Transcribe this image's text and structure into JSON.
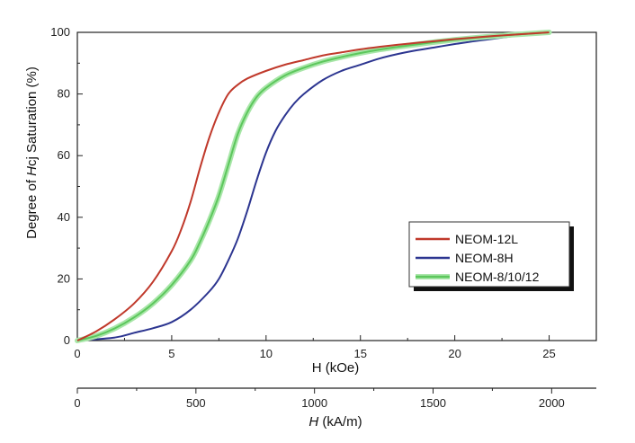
{
  "chart_data": {
    "type": "line",
    "ylabel_prefix": "Degree of ",
    "ylabel_italic": "H",
    "ylabel_suffix": "cj Saturation (%)",
    "xlabel": "H (kOe)",
    "x2label_italic": "H",
    "x2label_suffix": " (kA/m)",
    "xlim": [
      0,
      27.5
    ],
    "ylim": [
      0,
      100
    ],
    "x_ticks": [
      0,
      5,
      10,
      15,
      20,
      25
    ],
    "y_ticks": [
      0,
      20,
      40,
      60,
      80,
      100
    ],
    "x2_ticks": [
      0,
      500,
      1000,
      1500,
      2000
    ],
    "x2_per_x": 79.577,
    "grid": false,
    "legend_position": "center-right",
    "series": [
      {
        "name": "NEOM-12L",
        "color": "#c0392b",
        "x": [
          0,
          1,
          2,
          3,
          4,
          5,
          5.5,
          6,
          6.5,
          7,
          7.5,
          8,
          8.5,
          9,
          10,
          11,
          12,
          13,
          14,
          15,
          16,
          17,
          18,
          19,
          20,
          21,
          22,
          23,
          24,
          25
        ],
        "y": [
          0,
          3,
          7,
          12,
          19,
          29,
          36,
          45,
          56,
          66,
          74,
          80,
          83,
          85,
          87.5,
          89.5,
          91,
          92.5,
          93.5,
          94.5,
          95.3,
          96,
          96.6,
          97.2,
          97.8,
          98.3,
          98.8,
          99.2,
          99.6,
          100
        ]
      },
      {
        "name": "NEOM-8H",
        "color": "#2c3590",
        "x": [
          0,
          2,
          3,
          4,
          5,
          6,
          7,
          7.5,
          8,
          8.5,
          9,
          9.5,
          10,
          10.5,
          11,
          11.5,
          12,
          13,
          14,
          15,
          16,
          17,
          18,
          19,
          20,
          21,
          22,
          23,
          24,
          25
        ],
        "y": [
          0,
          1,
          2.5,
          4,
          6,
          10,
          16,
          20,
          26,
          33,
          42,
          52,
          61,
          68,
          73,
          77,
          80,
          84.5,
          87.5,
          89.5,
          91.5,
          93,
          94.2,
          95.2,
          96.2,
          97.1,
          97.9,
          98.7,
          99.4,
          100
        ]
      },
      {
        "name": "NEOM-8/10/12",
        "color": "#5cc75c",
        "x": [
          0,
          1,
          2,
          3,
          4,
          5,
          6,
          6.5,
          7,
          7.5,
          8,
          8.5,
          9,
          9.5,
          10,
          11,
          12,
          13,
          14,
          15,
          16,
          17,
          18,
          19,
          20,
          21,
          22,
          23,
          24,
          25
        ],
        "y": [
          0,
          1.5,
          4,
          7.5,
          12,
          18,
          26,
          32,
          39,
          47,
          57,
          67,
          74,
          79,
          82,
          86,
          88.5,
          90.5,
          92,
          93.3,
          94.4,
          95.3,
          96.1,
          96.9,
          97.6,
          98.2,
          98.7,
          99.2,
          99.6,
          100
        ]
      }
    ]
  }
}
